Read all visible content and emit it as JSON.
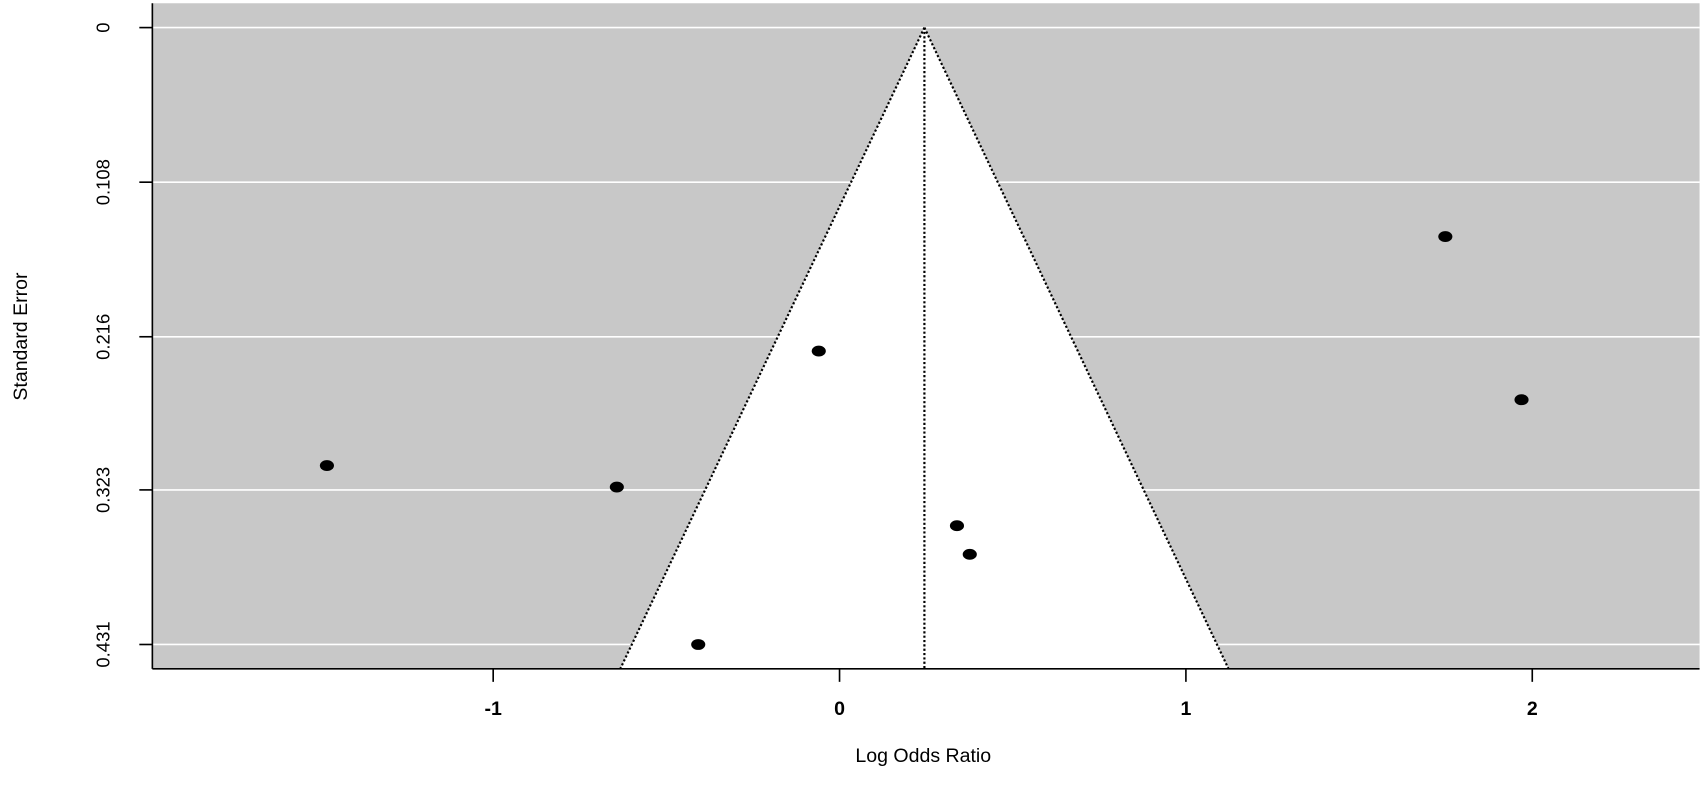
{
  "chart_data": {
    "type": "funnel",
    "x_label": "Log Odds Ratio",
    "y_label": "Standard Error",
    "x": [
      -1.48,
      -0.643,
      -0.408,
      -0.06,
      0.339,
      0.376,
      1.749,
      1.969
    ],
    "values": [
      0.306,
      0.321,
      0.431,
      0.226,
      0.348,
      0.368,
      0.146,
      0.26
    ],
    "color": "#000000",
    "estimate": 0.245,
    "z": 1.96,
    "xlim": [
      -1.984,
      2.483
    ],
    "xticks": [
      -1,
      0,
      1,
      2
    ],
    "ylim": [
      -0.017,
      0.448
    ],
    "yticks": [
      0,
      0.108,
      0.216,
      0.323,
      0.431
    ],
    "y_reversed": true,
    "grid": true
  }
}
